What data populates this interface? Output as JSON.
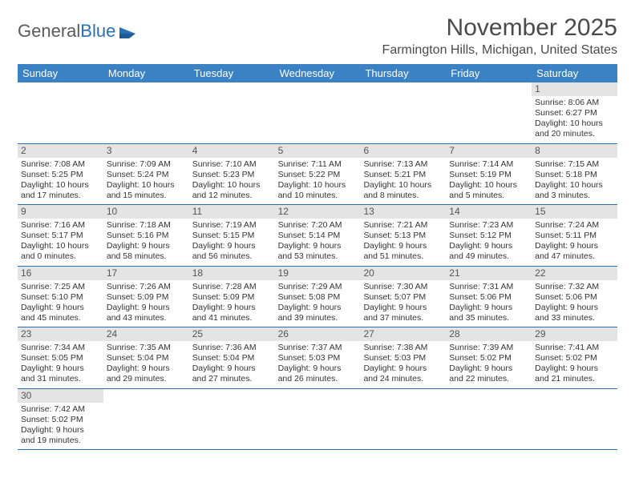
{
  "logo": {
    "text1": "General",
    "text2": "Blue"
  },
  "title": "November 2025",
  "location": "Farmington Hills, Michigan, United States",
  "colors": {
    "header_bg": "#3b82c4",
    "header_text": "#ffffff",
    "daynum_bg": "#e4e4e4",
    "border": "#2b6fb3",
    "body_text": "#333333"
  },
  "daysOfWeek": [
    "Sunday",
    "Monday",
    "Tuesday",
    "Wednesday",
    "Thursday",
    "Friday",
    "Saturday"
  ],
  "weeks": [
    [
      null,
      null,
      null,
      null,
      null,
      null,
      {
        "n": "1",
        "sr": "8:06 AM",
        "ss": "6:27 PM",
        "dl": "10 hours and 20 minutes."
      }
    ],
    [
      {
        "n": "2",
        "sr": "7:08 AM",
        "ss": "5:25 PM",
        "dl": "10 hours and 17 minutes."
      },
      {
        "n": "3",
        "sr": "7:09 AM",
        "ss": "5:24 PM",
        "dl": "10 hours and 15 minutes."
      },
      {
        "n": "4",
        "sr": "7:10 AM",
        "ss": "5:23 PM",
        "dl": "10 hours and 12 minutes."
      },
      {
        "n": "5",
        "sr": "7:11 AM",
        "ss": "5:22 PM",
        "dl": "10 hours and 10 minutes."
      },
      {
        "n": "6",
        "sr": "7:13 AM",
        "ss": "5:21 PM",
        "dl": "10 hours and 8 minutes."
      },
      {
        "n": "7",
        "sr": "7:14 AM",
        "ss": "5:19 PM",
        "dl": "10 hours and 5 minutes."
      },
      {
        "n": "8",
        "sr": "7:15 AM",
        "ss": "5:18 PM",
        "dl": "10 hours and 3 minutes."
      }
    ],
    [
      {
        "n": "9",
        "sr": "7:16 AM",
        "ss": "5:17 PM",
        "dl": "10 hours and 0 minutes."
      },
      {
        "n": "10",
        "sr": "7:18 AM",
        "ss": "5:16 PM",
        "dl": "9 hours and 58 minutes."
      },
      {
        "n": "11",
        "sr": "7:19 AM",
        "ss": "5:15 PM",
        "dl": "9 hours and 56 minutes."
      },
      {
        "n": "12",
        "sr": "7:20 AM",
        "ss": "5:14 PM",
        "dl": "9 hours and 53 minutes."
      },
      {
        "n": "13",
        "sr": "7:21 AM",
        "ss": "5:13 PM",
        "dl": "9 hours and 51 minutes."
      },
      {
        "n": "14",
        "sr": "7:23 AM",
        "ss": "5:12 PM",
        "dl": "9 hours and 49 minutes."
      },
      {
        "n": "15",
        "sr": "7:24 AM",
        "ss": "5:11 PM",
        "dl": "9 hours and 47 minutes."
      }
    ],
    [
      {
        "n": "16",
        "sr": "7:25 AM",
        "ss": "5:10 PM",
        "dl": "9 hours and 45 minutes."
      },
      {
        "n": "17",
        "sr": "7:26 AM",
        "ss": "5:09 PM",
        "dl": "9 hours and 43 minutes."
      },
      {
        "n": "18",
        "sr": "7:28 AM",
        "ss": "5:09 PM",
        "dl": "9 hours and 41 minutes."
      },
      {
        "n": "19",
        "sr": "7:29 AM",
        "ss": "5:08 PM",
        "dl": "9 hours and 39 minutes."
      },
      {
        "n": "20",
        "sr": "7:30 AM",
        "ss": "5:07 PM",
        "dl": "9 hours and 37 minutes."
      },
      {
        "n": "21",
        "sr": "7:31 AM",
        "ss": "5:06 PM",
        "dl": "9 hours and 35 minutes."
      },
      {
        "n": "22",
        "sr": "7:32 AM",
        "ss": "5:06 PM",
        "dl": "9 hours and 33 minutes."
      }
    ],
    [
      {
        "n": "23",
        "sr": "7:34 AM",
        "ss": "5:05 PM",
        "dl": "9 hours and 31 minutes."
      },
      {
        "n": "24",
        "sr": "7:35 AM",
        "ss": "5:04 PM",
        "dl": "9 hours and 29 minutes."
      },
      {
        "n": "25",
        "sr": "7:36 AM",
        "ss": "5:04 PM",
        "dl": "9 hours and 27 minutes."
      },
      {
        "n": "26",
        "sr": "7:37 AM",
        "ss": "5:03 PM",
        "dl": "9 hours and 26 minutes."
      },
      {
        "n": "27",
        "sr": "7:38 AM",
        "ss": "5:03 PM",
        "dl": "9 hours and 24 minutes."
      },
      {
        "n": "28",
        "sr": "7:39 AM",
        "ss": "5:02 PM",
        "dl": "9 hours and 22 minutes."
      },
      {
        "n": "29",
        "sr": "7:41 AM",
        "ss": "5:02 PM",
        "dl": "9 hours and 21 minutes."
      }
    ],
    [
      {
        "n": "30",
        "sr": "7:42 AM",
        "ss": "5:02 PM",
        "dl": "9 hours and 19 minutes."
      },
      null,
      null,
      null,
      null,
      null,
      null
    ]
  ],
  "labels": {
    "sunrise": "Sunrise: ",
    "sunset": "Sunset: ",
    "daylight": "Daylight: "
  }
}
